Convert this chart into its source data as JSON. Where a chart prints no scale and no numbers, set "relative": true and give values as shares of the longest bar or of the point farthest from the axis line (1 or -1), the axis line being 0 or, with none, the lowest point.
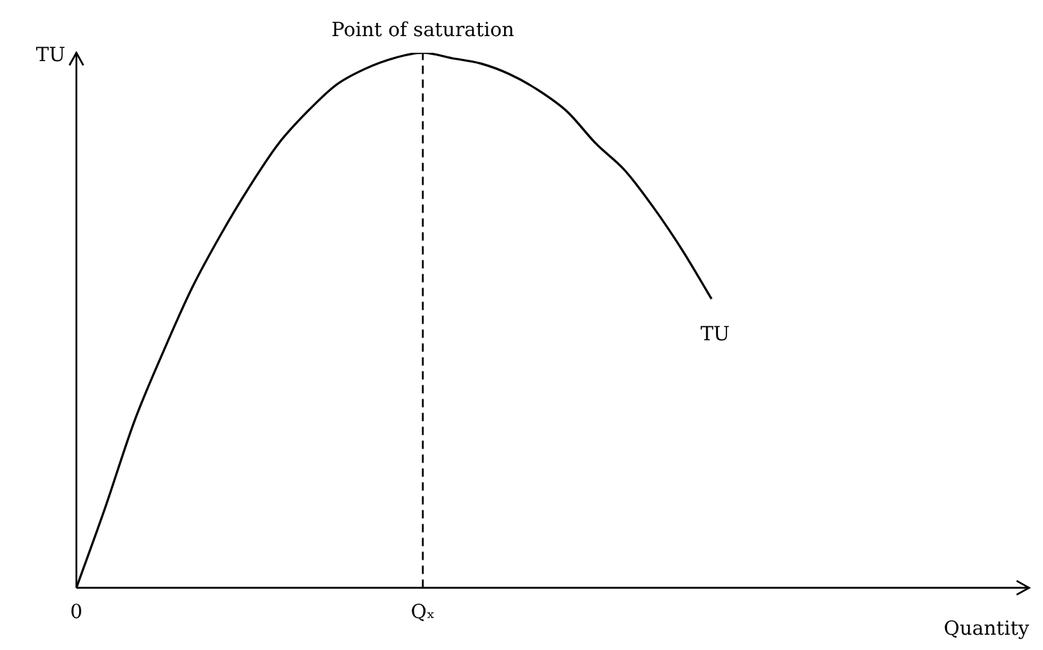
{
  "chart_data": {
    "type": "line",
    "relative": true,
    "xlabel": "Quantity",
    "ylabel": "TU",
    "tick_labels": "x",
    "grid": false,
    "legend": false,
    "marker": "none",
    "categories": [
      "0",
      null,
      null,
      null,
      null,
      null,
      null,
      null,
      null,
      null,
      null,
      null,
      "Qₓ",
      null,
      null,
      null,
      null,
      null,
      null,
      null,
      null,
      null,
      null,
      null,
      null,
      null,
      null,
      null,
      null,
      null,
      null,
      null,
      null,
      null
    ],
    "series": [
      {
        "name": "TU",
        "color": "#000000",
        "line_style": "solid",
        "values": [
          0,
          0.15,
          0.31,
          0.44,
          0.56,
          0.66,
          0.75,
          0.83,
          0.89,
          0.94,
          0.97,
          0.99,
          1,
          0.99,
          0.98,
          0.96,
          0.93,
          0.89,
          0.83,
          0.78,
          0.71,
          0.63,
          0.54,
          null,
          null,
          null,
          null,
          null,
          null,
          null,
          null,
          null,
          null,
          null
        ]
      }
    ],
    "ref_lines": [
      {
        "axis": "x",
        "value": "Qₓ",
        "line_style": "dashed",
        "color": "#000000"
      }
    ],
    "annotations": [
      {
        "text": "Point of saturation",
        "x": "Qₓ",
        "y": 1
      }
    ]
  }
}
